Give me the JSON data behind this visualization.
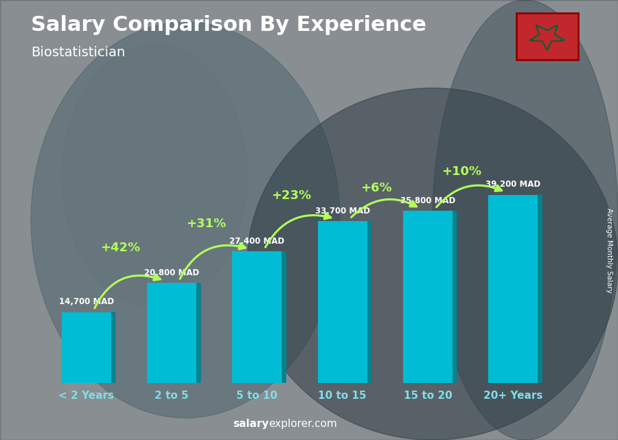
{
  "title": "Salary Comparison By Experience",
  "subtitle": "Biostatistician",
  "categories": [
    "< 2 Years",
    "2 to 5",
    "5 to 10",
    "10 to 15",
    "15 to 20",
    "20+ Years"
  ],
  "values": [
    14700,
    20800,
    27400,
    33700,
    35800,
    39200
  ],
  "bar_color_main": "#00bcd4",
  "bar_color_light": "#26c6da",
  "bar_color_dark": "#00838f",
  "bar_color_top": "#80deea",
  "pct_changes": [
    "+42%",
    "+31%",
    "+23%",
    "+6%",
    "+10%"
  ],
  "salary_labels": [
    "14,700 MAD",
    "20,800 MAD",
    "27,400 MAD",
    "33,700 MAD",
    "35,800 MAD",
    "39,200 MAD"
  ],
  "arrow_color": "#b2ff59",
  "text_color_white": "#ffffff",
  "text_color_cyan": "#80deea",
  "watermark_salary": "salary",
  "watermark_rest": "explorer.com",
  "ylabel_right": "Average Monthly Salary",
  "bg_color": "#546e7a",
  "ylim": [
    0,
    55000
  ],
  "bar_width": 0.58
}
